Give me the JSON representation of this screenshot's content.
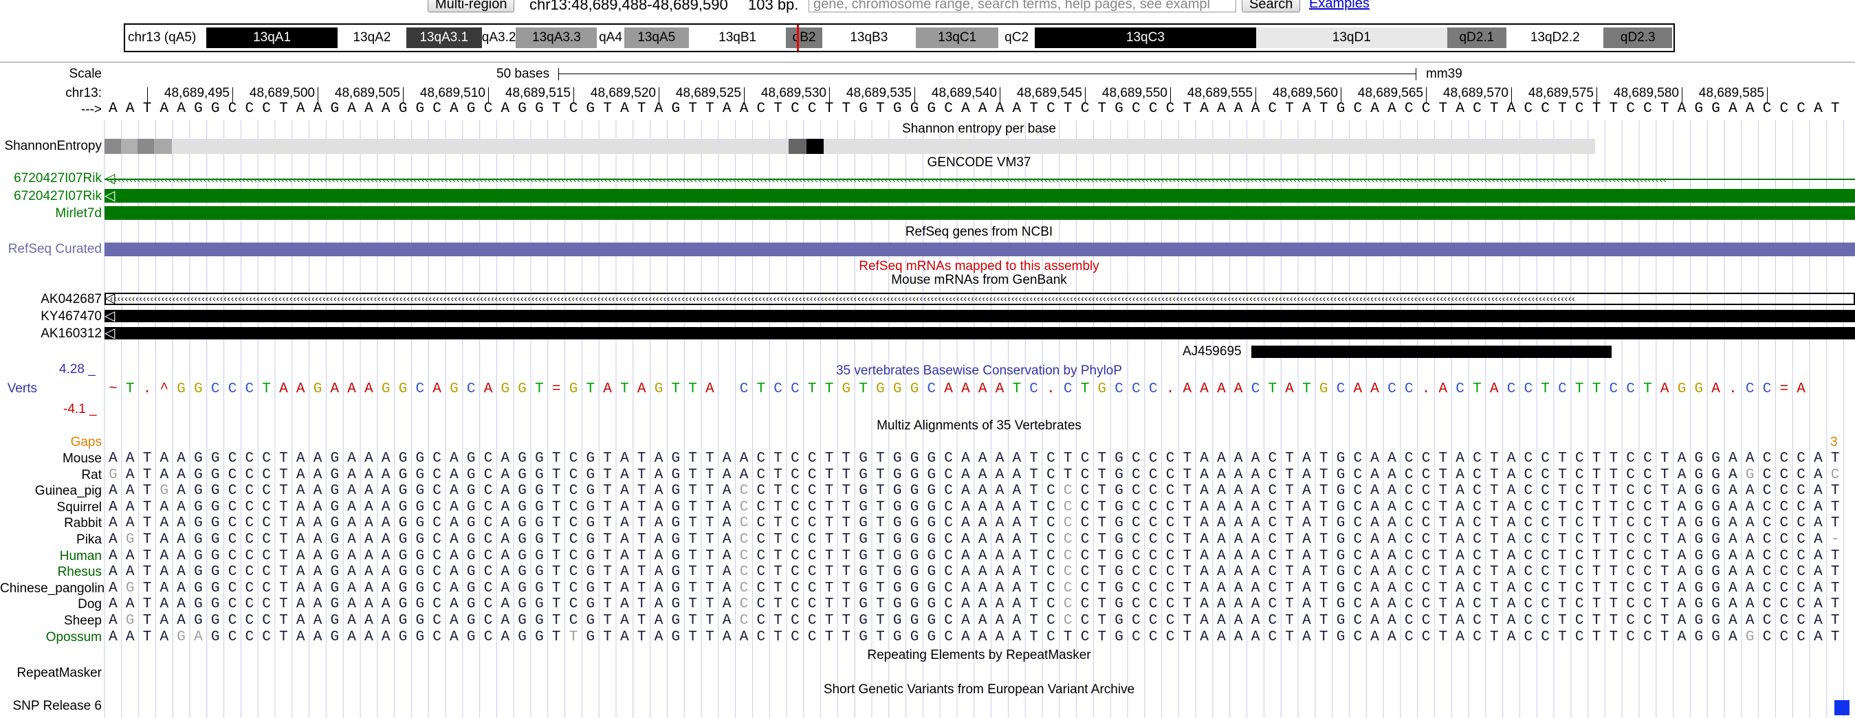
{
  "nav": {
    "multi_region": "Multi-region",
    "position": "chr13:48,689,488-48,689,590",
    "size": "103 bp.",
    "search_placeholder": "gene, chromosome range, search terms, help pages, see exampl",
    "search_btn": "Search",
    "examples": "Examples"
  },
  "ideogram": {
    "chrom_label": "chr13 (qA5)",
    "bands": [
      {
        "name": "13qA1",
        "color": "#000000",
        "text": "#ffffff"
      },
      {
        "name": "13qA2",
        "color": "#ffffff",
        "text": "#000000"
      },
      {
        "name": "13qA3.1",
        "color": "#3a3a3a",
        "text": "#ffffff"
      },
      {
        "name": "qA3.2",
        "color": "#ffffff",
        "text": "#000000"
      },
      {
        "name": "13qA3.3",
        "color": "#9a9a9a",
        "text": "#000000"
      },
      {
        "name": "qA4",
        "color": "#ffffff",
        "text": "#000000"
      },
      {
        "name": "13qA5",
        "color": "#9a9a9a",
        "text": "#000000"
      },
      {
        "name": "13qB1",
        "color": "#ffffff",
        "text": "#000000"
      },
      {
        "name": "qB2",
        "color": "#7a7a7a",
        "text": "#000000"
      },
      {
        "name": "13qB3",
        "color": "#ffffff",
        "text": "#000000"
      },
      {
        "name": "13qC1",
        "color": "#9a9a9a",
        "text": "#000000"
      },
      {
        "name": "qC2",
        "color": "#ffffff",
        "text": "#000000"
      },
      {
        "name": "13qC3",
        "color": "#000000",
        "text": "#ffffff"
      },
      {
        "name": "13qD1",
        "color": "#e8e8e8",
        "text": "#000000"
      },
      {
        "name": "qD2.1",
        "color": "#7a7a7a",
        "text": "#000000"
      },
      {
        "name": "13qD2.2",
        "color": "#ffffff",
        "text": "#000000"
      },
      {
        "name": "qD2.3",
        "color": "#7a7a7a",
        "text": "#000000"
      }
    ]
  },
  "scale": {
    "label": "Scale",
    "bar": "50 bases",
    "assembly": "mm39"
  },
  "ruler": {
    "chrom": "chr13:",
    "arrow": "--->",
    "positions": [
      "48,689,495",
      "48,689,500",
      "48,689,505",
      "48,689,510",
      "48,689,515",
      "48,689,520",
      "48,689,525",
      "48,689,530",
      "48,689,535",
      "48,689,540",
      "48,689,545",
      "48,689,550",
      "48,689,555",
      "48,689,560",
      "48,689,565",
      "48,689,570",
      "48,689,575",
      "48,689,580",
      "48,689,585"
    ]
  },
  "base_seq": "AATAAGGCCCTAAGAAAGGCAGCAGGTCGTATAGTTAACTCCTTGTGGGCAAAATCTCTGCCCTAAAACTATGCAACCTACTACCTCTTCCTAGGAACCCAT",
  "tracks": {
    "shannon_title": "Shannon entropy per base",
    "shannon_label": "ShannonEntropy",
    "gencode_title": "GENCODE VM37",
    "gencode_rows": [
      "6720427I07Rik",
      "6720427I07Rik",
      "Mirlet7d"
    ],
    "refseq_title": "RefSeq genes from NCBI",
    "refseq_label": "RefSeq Curated",
    "refseq_mrna_title": "RefSeq mRNAs mapped to this assembly",
    "mouse_mrna_title": "Mouse mRNAs from GenBank",
    "mrna_rows": [
      "AK042687",
      "KY467470",
      "AK160312"
    ],
    "aj_label": "AJ459695",
    "phylop_title": "35 vertebrates Basewise Conservation by PhyloP",
    "phylop_label": "Verts",
    "phylop_max": "4.28 _",
    "phylop_min": "-4.1 _",
    "phylop_seq": "~T.^GGCCCTAAGAAAGGCAGCAGGT=GTATAGTTA CTCCTTGTGGGCAAAATC.CTGCCC.AAAACTATGCAACC.ACTACCTCTTCCTAGGA.CC=A",
    "multiz_title": "Multiz Alignments of 35 Vertebrates",
    "gaps_label": "Gaps",
    "gaps_value": "3",
    "species": [
      {
        "name": "Mouse",
        "color": "#000000",
        "seq": "AATAAGGCCCTAAGAAAGGCAGCAGGTCGTATAGTTAACTCCTTGTGGGCAAAATCTCTGCCCTAAAACTATGCAACCTACTACCTCTTCCTAGGAACCCAT"
      },
      {
        "name": "Rat",
        "color": "#000000",
        "seq": "GATAAGGCCCTAAGAAAGGCAGCAGGTCGTATAGTTAACTCCTTGTGGGCAAAATCTCTGCCCTAAAACTATGCAACCTACTACCTCTTCCTAGGAGCCCAC"
      },
      {
        "name": "Guinea_pig",
        "color": "#000000",
        "seq": "AATGAGGCCCTAAGAAAGGCAGCAGGTCGTATAGTTACCTCCTTGTGGGCAAAATCCCTGCCCTAAAACTATGCAACCTACTACCTCTTCCTAGGAACCCAT"
      },
      {
        "name": "Squirrel",
        "color": "#000000",
        "seq": "AATAAGGCCCTAAGAAAGGCAGCAGGTCGTATAGTTACCTCCTTGTGGGCAAAATCCCTGCCCTAAAACTATGCAACCTACTACCTCTTCCTAGGAACCCAT"
      },
      {
        "name": "Rabbit",
        "color": "#000000",
        "seq": "AATAAGGCCCTAAGAAAGGCAGCAGGTCGTATAGTTACCTCCTTGTGGGCAAAATCCCTGCCCTAAAACTATGCAACCTACTACCTCTTCCTAGGAACCCAT"
      },
      {
        "name": "Pika",
        "color": "#000000",
        "seq": "AGTAAGGCCCTAAGAAAGGCAGCAGGTCGTATAGTTACCTCCTTGTGGGCAAAATCCCTGCCCTAAAACTATGCAACCTACTACCTCTTCCTAGGAACCCA-"
      },
      {
        "name": "Human",
        "color": "#006400",
        "seq": "AATAAGGCCCTAAGAAAGGCAGCAGGTCGTATAGTTACCTCCTTGTGGGCAAAATCCCTGCCCTAAAACTATGCAACCTACTACCTCTTCCTAGGAACCCAT"
      },
      {
        "name": "Rhesus",
        "color": "#006400",
        "seq": "AATAAGGCCCTAAGAAAGGCAGCAGGTCGTATAGTTACCTCCTTGTGGGCAAAATCCCTGCCCTAAAACTATGCAACCTACTACCTCTTCCTAGGAACCCAT"
      },
      {
        "name": "Chinese_pangolin",
        "color": "#000000",
        "seq": "AGTAAGGCCCTAAGAAAGGCAGCAGGTCGTATAGTTACCTCCTTGTGGGCAAAATCCCTGCCCTAAAACTATGCAACCTACTACCTCTTCCTAGGAACCCAT"
      },
      {
        "name": "Dog",
        "color": "#000000",
        "seq": "AATAAGGCCCTAAGAAAGGCAGCAGGTCGTATAGTTACCTCCTTGTGGGCAAAATCCCTGCCCTAAAACTATGCAACCTACTACCTCTTCCTAGGAACCCAT"
      },
      {
        "name": "Sheep",
        "color": "#000000",
        "seq": "AGTAAGGCCCTAAGAAAGGCAGCAGGTCGTATAGTTACCTCCTTGTGGGCAAAATCCCTGCCCTAAAACTATGCAACCTACTACCTCTTCCTAGGAACCCAT"
      },
      {
        "name": "Opossum",
        "color": "#006400",
        "seq": "AATAGAGCCCTAAGAAAGGCAGCAGGTTGTATAGTTAACTCCTTGTGGGCAAAATCTCTGCCCTAAAACTATGCAACCTACTACCTCTTCCTAGGAGCCCAT"
      }
    ],
    "repeat_title": "Repeating Elements by RepeatMasker",
    "repeat_label": "RepeatMasker",
    "eva_title": "Short Genetic Variants from European Variant Archive",
    "eva_label": "SNP Release 6"
  },
  "colors": {
    "gencode": "#007800",
    "refseq": "#6b6bb0",
    "refseq_mrna_title": "#cc0000",
    "phylop_title": "#3333aa",
    "gaps": "#e08000",
    "base_A": "#cc0000",
    "base_C": "#3355cc",
    "base_G": "#b8a000",
    "base_T": "#00a000"
  }
}
